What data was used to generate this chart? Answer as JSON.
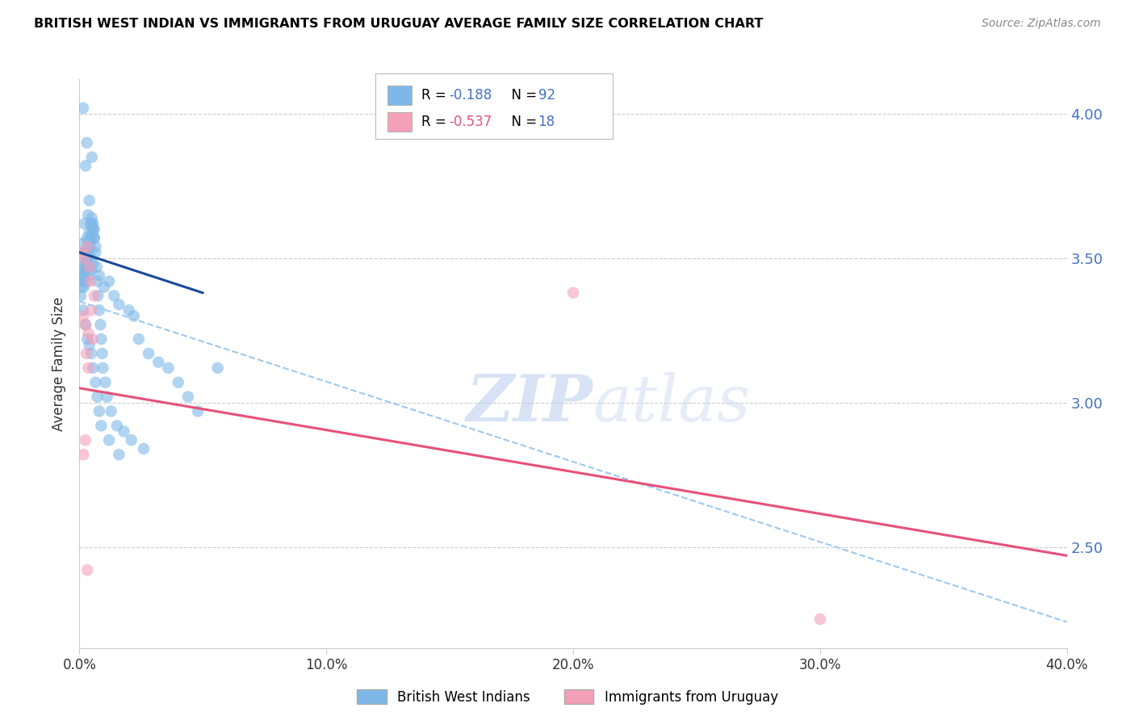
{
  "title": "BRITISH WEST INDIAN VS IMMIGRANTS FROM URUGUAY AVERAGE FAMILY SIZE CORRELATION CHART",
  "source": "Source: ZipAtlas.com",
  "ylabel": "Average Family Size",
  "xmin": 0.0,
  "xmax": 40.0,
  "ymin": 2.15,
  "ymax": 4.12,
  "yticks": [
    2.5,
    3.0,
    3.5,
    4.0
  ],
  "xticks": [
    0.0,
    10.0,
    20.0,
    30.0,
    40.0
  ],
  "legend_label1": "British West Indians",
  "legend_label2": "Immigrants from Uruguay",
  "blue_color": "#7EB8E8",
  "pink_color": "#F4A0B8",
  "blue_line_color": "#1A4A9A",
  "pink_line_color": "#E8507A",
  "dashed_line_color": "#9EC8F0",
  "rv1_color": "#4472C4",
  "rv2_color": "#E8507A",
  "nv_color": "#4472C4",
  "watermark_text": "ZIPatlas",
  "blue_scatter_x": [
    0.15,
    0.3,
    0.25,
    0.5,
    0.2,
    0.35,
    0.4,
    0.6,
    0.1,
    0.25,
    0.3,
    0.45,
    0.5,
    0.15,
    0.2,
    0.25,
    0.3,
    0.35,
    0.4,
    0.5,
    0.55,
    0.6,
    0.65,
    0.1,
    0.12,
    0.18,
    0.22,
    0.28,
    0.38,
    0.48,
    0.18,
    0.28,
    0.38,
    0.48,
    0.55,
    0.8,
    1.0,
    1.2,
    1.4,
    1.6,
    2.0,
    2.2,
    2.4,
    2.8,
    3.2,
    3.6,
    4.0,
    4.4,
    4.8,
    5.6,
    0.05,
    0.1,
    0.12,
    0.2,
    0.25,
    0.28,
    0.32,
    0.38,
    0.42,
    0.45,
    0.5,
    0.52,
    0.55,
    0.6,
    0.65,
    0.7,
    0.72,
    0.75,
    0.8,
    0.85,
    0.88,
    0.92,
    0.95,
    1.05,
    1.12,
    1.28,
    1.52,
    1.8,
    2.1,
    2.6,
    0.15,
    0.25,
    0.32,
    0.4,
    0.48,
    0.55,
    0.65,
    0.72,
    0.8,
    0.88,
    1.2,
    1.6
  ],
  "blue_scatter_y": [
    4.02,
    3.9,
    3.82,
    3.85,
    3.62,
    3.65,
    3.7,
    3.6,
    3.55,
    3.52,
    3.57,
    3.62,
    3.64,
    3.46,
    3.52,
    3.49,
    3.53,
    3.56,
    3.59,
    3.62,
    3.6,
    3.57,
    3.54,
    3.42,
    3.44,
    3.47,
    3.5,
    3.52,
    3.47,
    3.5,
    3.4,
    3.42,
    3.44,
    3.46,
    3.48,
    3.44,
    3.4,
    3.42,
    3.37,
    3.34,
    3.32,
    3.3,
    3.22,
    3.17,
    3.14,
    3.12,
    3.07,
    3.02,
    2.97,
    3.12,
    3.37,
    3.4,
    3.42,
    3.44,
    3.46,
    3.48,
    3.5,
    3.52,
    3.54,
    3.56,
    3.58,
    3.6,
    3.62,
    3.57,
    3.52,
    3.47,
    3.42,
    3.37,
    3.32,
    3.27,
    3.22,
    3.17,
    3.12,
    3.07,
    3.02,
    2.97,
    2.92,
    2.9,
    2.87,
    2.84,
    3.32,
    3.27,
    3.22,
    3.2,
    3.17,
    3.12,
    3.07,
    3.02,
    2.97,
    2.92,
    2.87,
    2.82
  ],
  "pink_scatter_x": [
    0.12,
    0.2,
    0.32,
    0.4,
    0.48,
    0.6,
    0.16,
    0.24,
    0.36,
    0.44,
    0.52,
    0.28,
    0.36,
    20.0,
    30.0,
    0.16,
    0.24,
    0.32
  ],
  "pink_scatter_y": [
    3.52,
    3.5,
    3.54,
    3.47,
    3.32,
    3.37,
    3.3,
    3.27,
    3.24,
    3.42,
    3.22,
    3.17,
    3.12,
    3.38,
    2.25,
    2.82,
    2.87,
    2.42
  ],
  "blue_line_x0": 0.0,
  "blue_line_x1": 5.0,
  "blue_line_y0": 3.52,
  "blue_line_y1": 3.38,
  "blue_dash_x0": 0.0,
  "blue_dash_x1": 40.0,
  "blue_dash_y0": 3.35,
  "blue_dash_y1": 2.24,
  "pink_line_x0": 0.0,
  "pink_line_x1": 40.0,
  "pink_line_y0": 3.05,
  "pink_line_y1": 2.47
}
